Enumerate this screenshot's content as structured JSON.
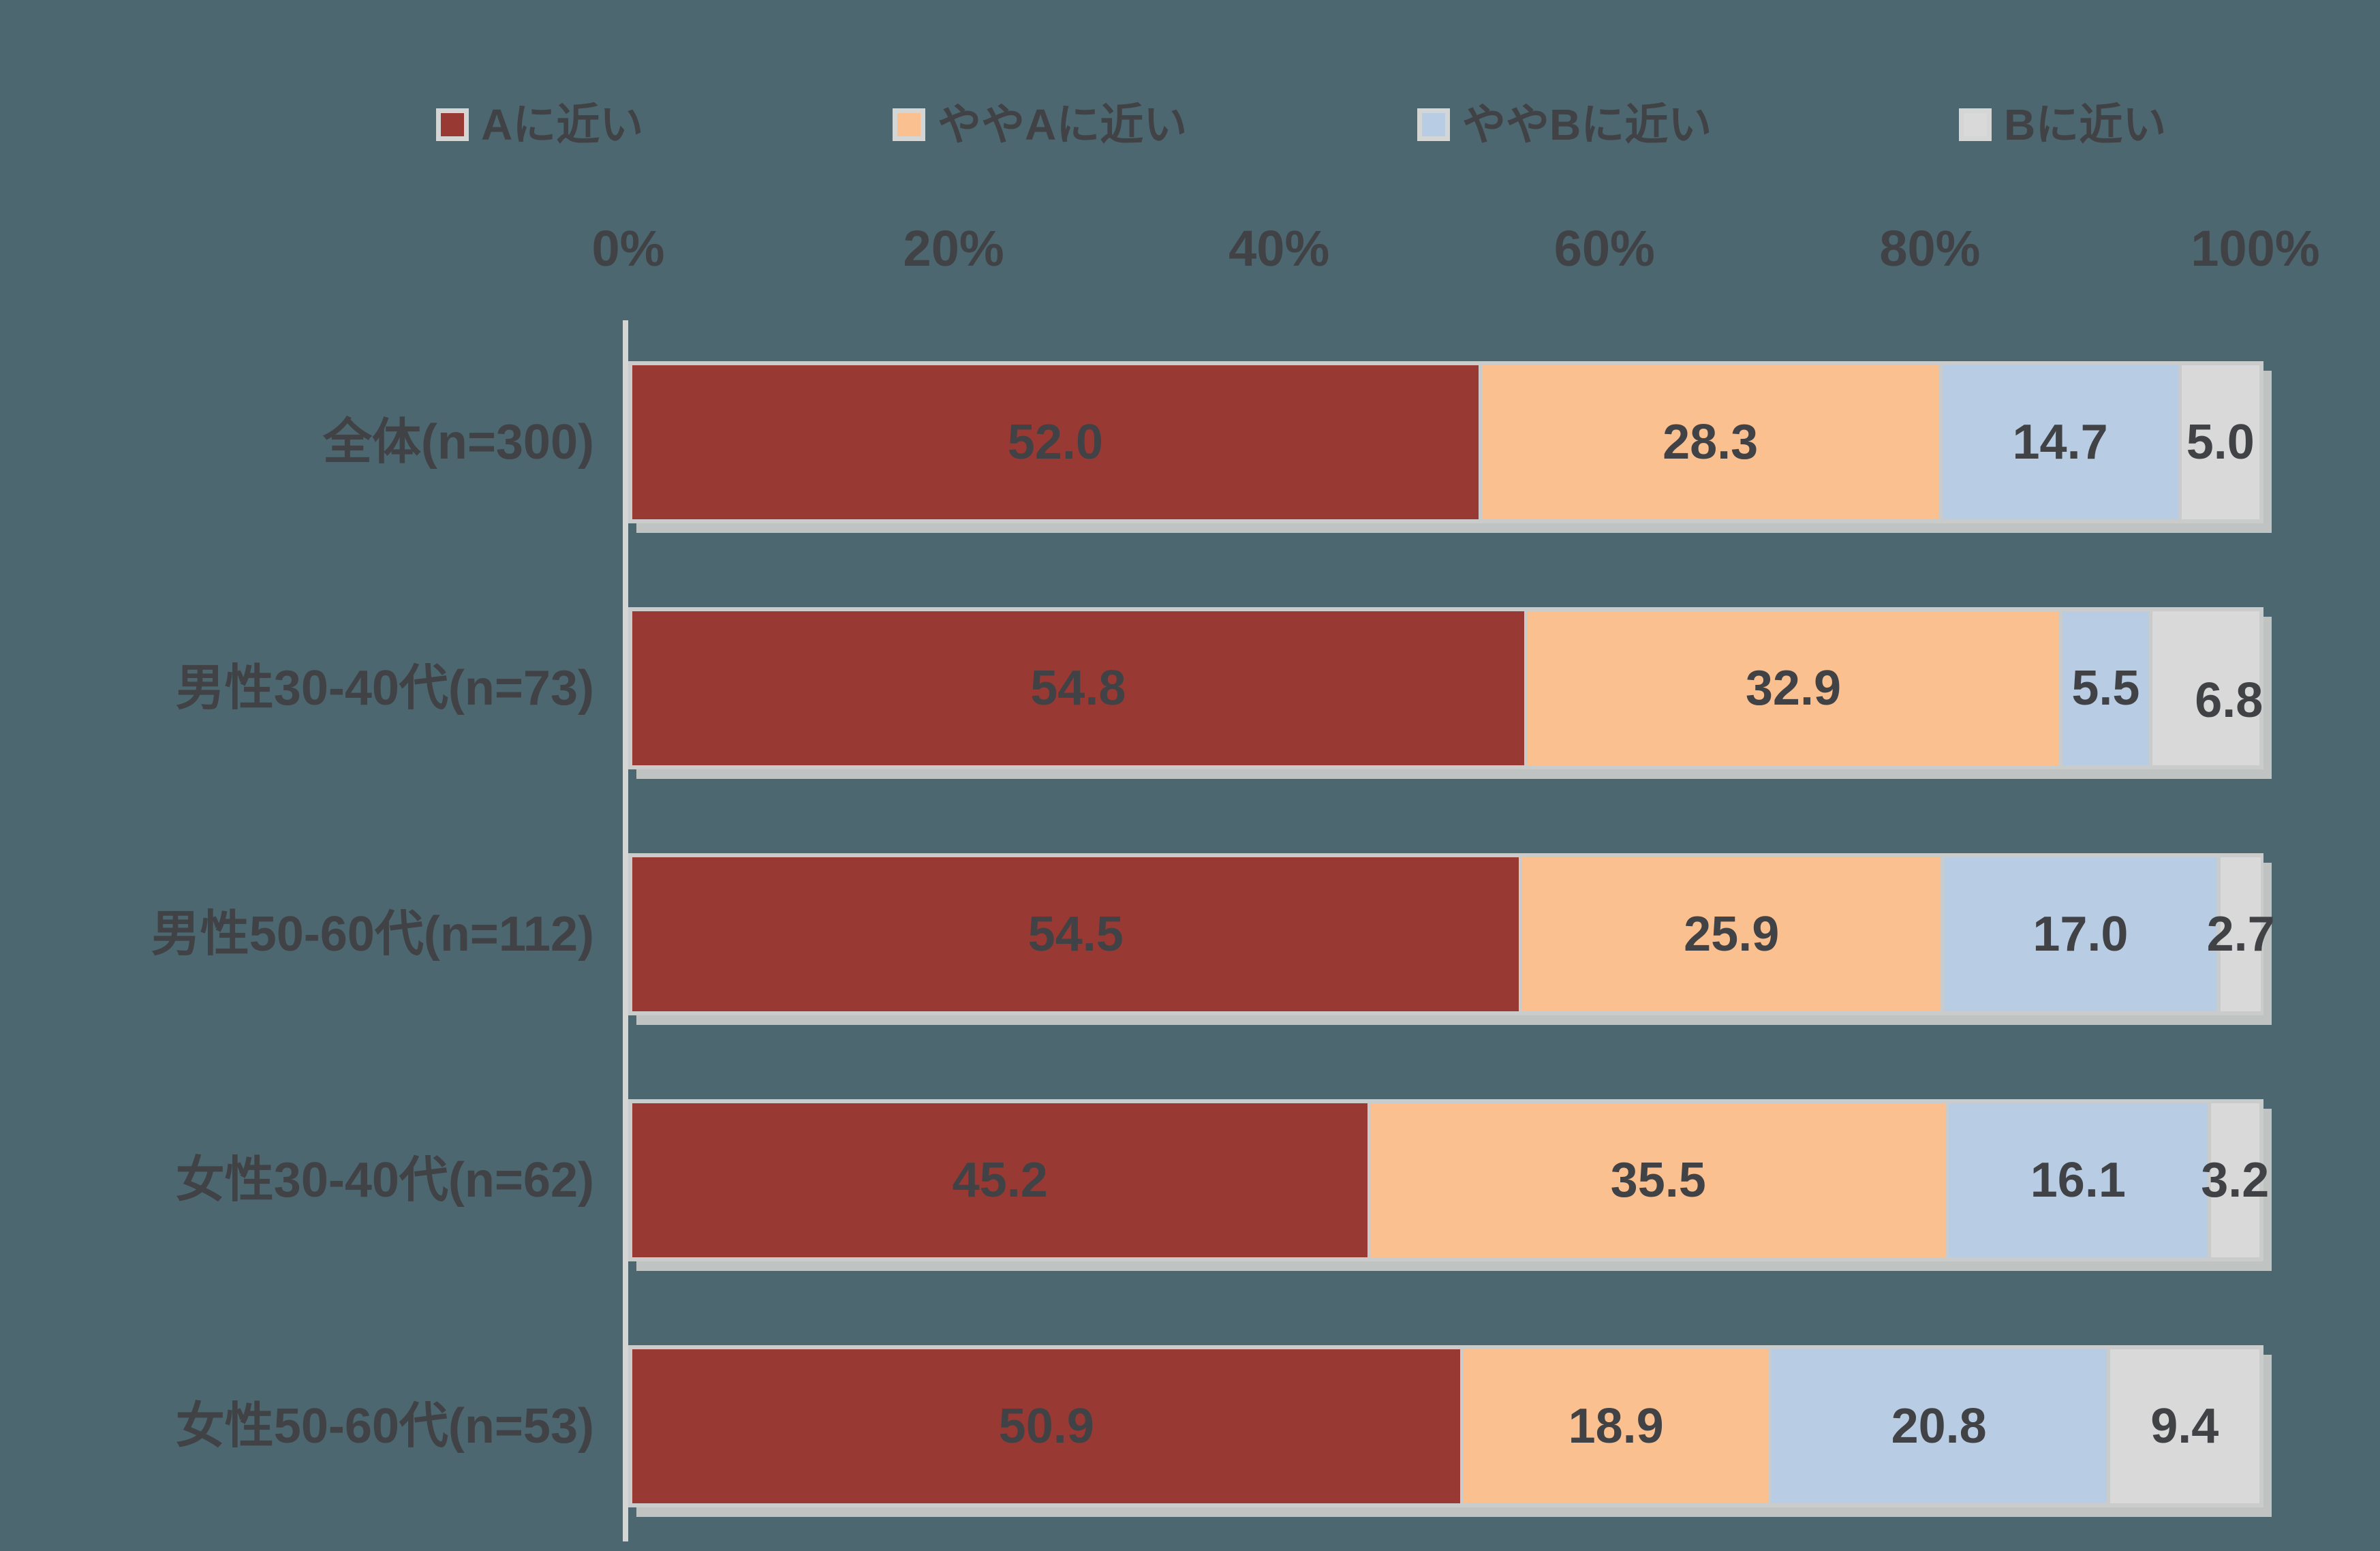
{
  "colors": {
    "background": "#4C6770",
    "text": "#404245",
    "segment_border": "#C9CCCB",
    "axis_line": "#D4D6D6",
    "bar_shadow": "#BFC3C2",
    "legend_swatch_border": "#D4D6D6"
  },
  "legend": {
    "items": [
      {
        "label": "Aに近い",
        "color": "#983A33"
      },
      {
        "label": "ややAに近い",
        "color": "#FAC090"
      },
      {
        "label": "ややBに近い",
        "color": "#B8CCE4"
      },
      {
        "label": "Bに近い",
        "color": "#D9D9D9"
      }
    ]
  },
  "x_axis": {
    "tick_labels": [
      "0%",
      "20%",
      "40%",
      "60%",
      "80%",
      "100%"
    ]
  },
  "chart_data": {
    "type": "bar",
    "subtype": "horizontal-stacked-100pct",
    "unit": "%",
    "title": "",
    "xlabel": "",
    "ylabel": "",
    "xlim": [
      0,
      100
    ],
    "gridlines": false,
    "legend_position": "top",
    "value_labels": true,
    "value_label_format": "0.0",
    "categories": [
      "全体(n=300)",
      "男性30-40代(n=73)",
      "男性50-60代(n=112)",
      "女性30-40代(n=62)",
      "女性50-60代(n=53)"
    ],
    "series": [
      {
        "name": "Aに近い",
        "color": "#983A33",
        "values": [
          52.0,
          54.8,
          54.5,
          45.2,
          50.9
        ]
      },
      {
        "name": "ややAに近い",
        "color": "#FAC090",
        "values": [
          28.3,
          32.9,
          25.9,
          35.5,
          18.9
        ]
      },
      {
        "name": "ややBに近い",
        "color": "#B8CCE4",
        "values": [
          14.7,
          5.5,
          17.0,
          16.1,
          20.8
        ]
      },
      {
        "name": "Bに近い",
        "color": "#D9D9D9",
        "values": [
          5.0,
          6.8,
          2.7,
          3.2,
          9.4
        ]
      }
    ]
  }
}
